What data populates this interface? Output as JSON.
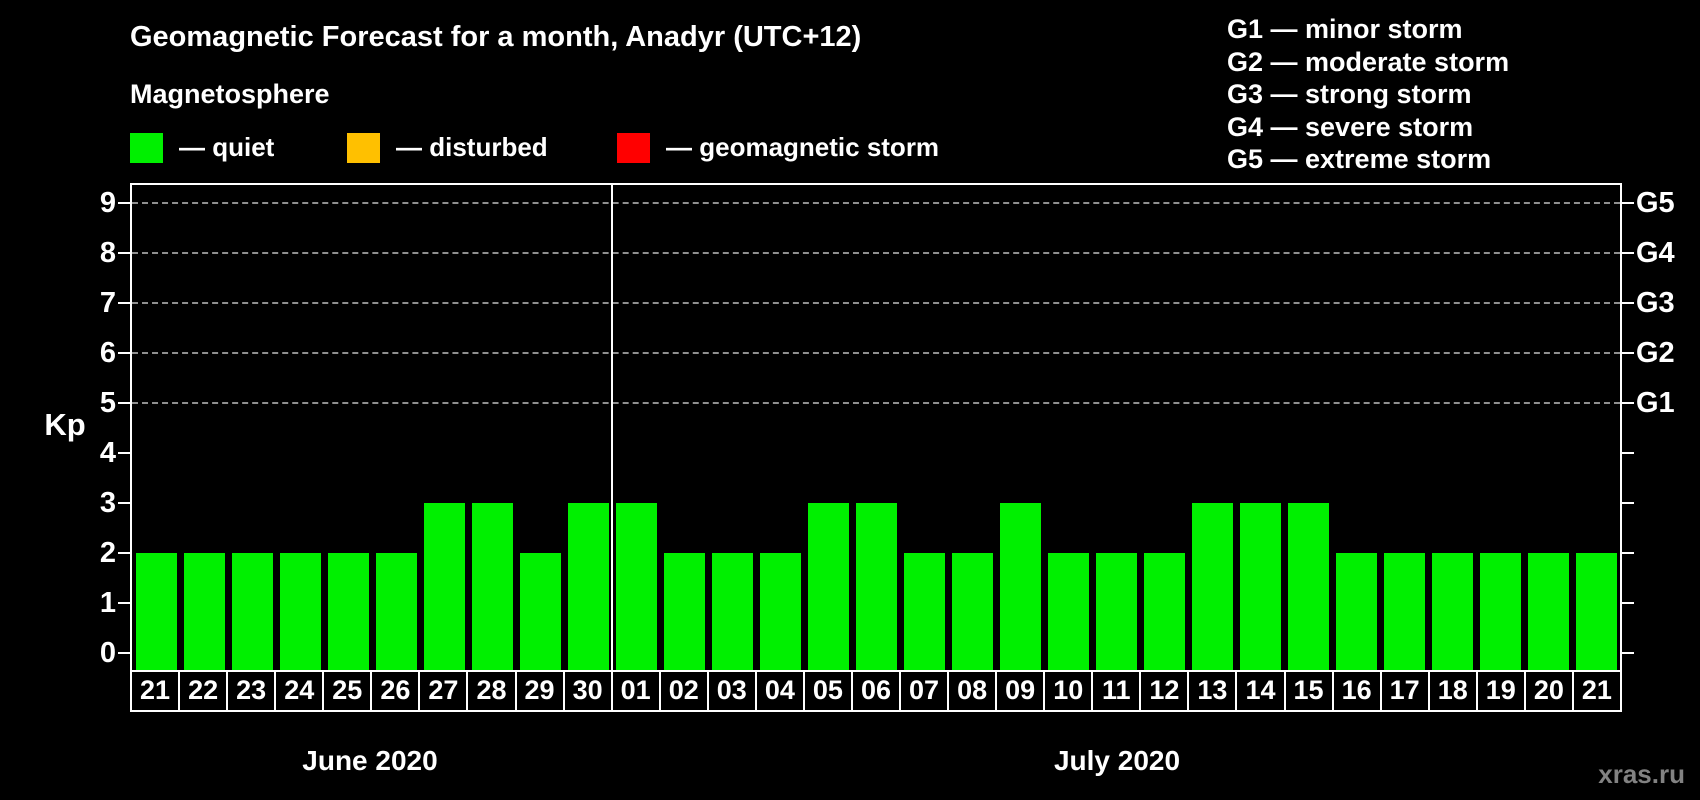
{
  "title": "Geomagnetic Forecast for a month, Anadyr (UTC+12)",
  "legend": {
    "heading": "Magnetosphere",
    "items": [
      {
        "key": "quiet",
        "label": "— quiet",
        "color": "#00f000"
      },
      {
        "key": "disturbed",
        "label": "— disturbed",
        "color": "#ffc000"
      },
      {
        "key": "geomagnetic-storm",
        "label": "— geomagnetic storm",
        "color": "#ff0000"
      }
    ]
  },
  "g_scale_legend": [
    "G1 — minor storm",
    "G2 — moderate storm",
    "G3 — strong storm",
    "G4 — severe storm",
    "G5 — extreme storm"
  ],
  "watermark": "xras.ru",
  "chart_data": {
    "type": "bar",
    "title": "Geomagnetic Forecast for a month, Anadyr (UTC+12)",
    "ylabel": "Kp",
    "ylim": [
      0,
      9
    ],
    "yticks": [
      0,
      1,
      2,
      3,
      4,
      5,
      6,
      7,
      8,
      9
    ],
    "grid_levels": [
      5,
      6,
      7,
      8,
      9
    ],
    "grid_style": "dashed",
    "legend_position": "top",
    "bar_color": "#00f000",
    "right_axis_labels": [
      {
        "kp": 5,
        "label": "G1"
      },
      {
        "kp": 6,
        "label": "G2"
      },
      {
        "kp": 7,
        "label": "G3"
      },
      {
        "kp": 8,
        "label": "G4"
      },
      {
        "kp": 9,
        "label": "G5"
      }
    ],
    "months": [
      {
        "label": "June 2020",
        "days": [
          "21",
          "22",
          "23",
          "24",
          "25",
          "26",
          "27",
          "28",
          "29",
          "30"
        ],
        "values": [
          2,
          2,
          2,
          2,
          2,
          2,
          3,
          3,
          2,
          3
        ]
      },
      {
        "label": "July 2020",
        "days": [
          "01",
          "02",
          "03",
          "04",
          "05",
          "06",
          "07",
          "08",
          "09",
          "10",
          "11",
          "12",
          "13",
          "14",
          "15",
          "16",
          "17",
          "18",
          "19",
          "20",
          "21"
        ],
        "values": [
          3,
          2,
          2,
          2,
          3,
          3,
          2,
          2,
          3,
          2,
          2,
          2,
          3,
          3,
          3,
          2,
          2,
          2,
          2,
          2,
          2
        ]
      }
    ]
  }
}
